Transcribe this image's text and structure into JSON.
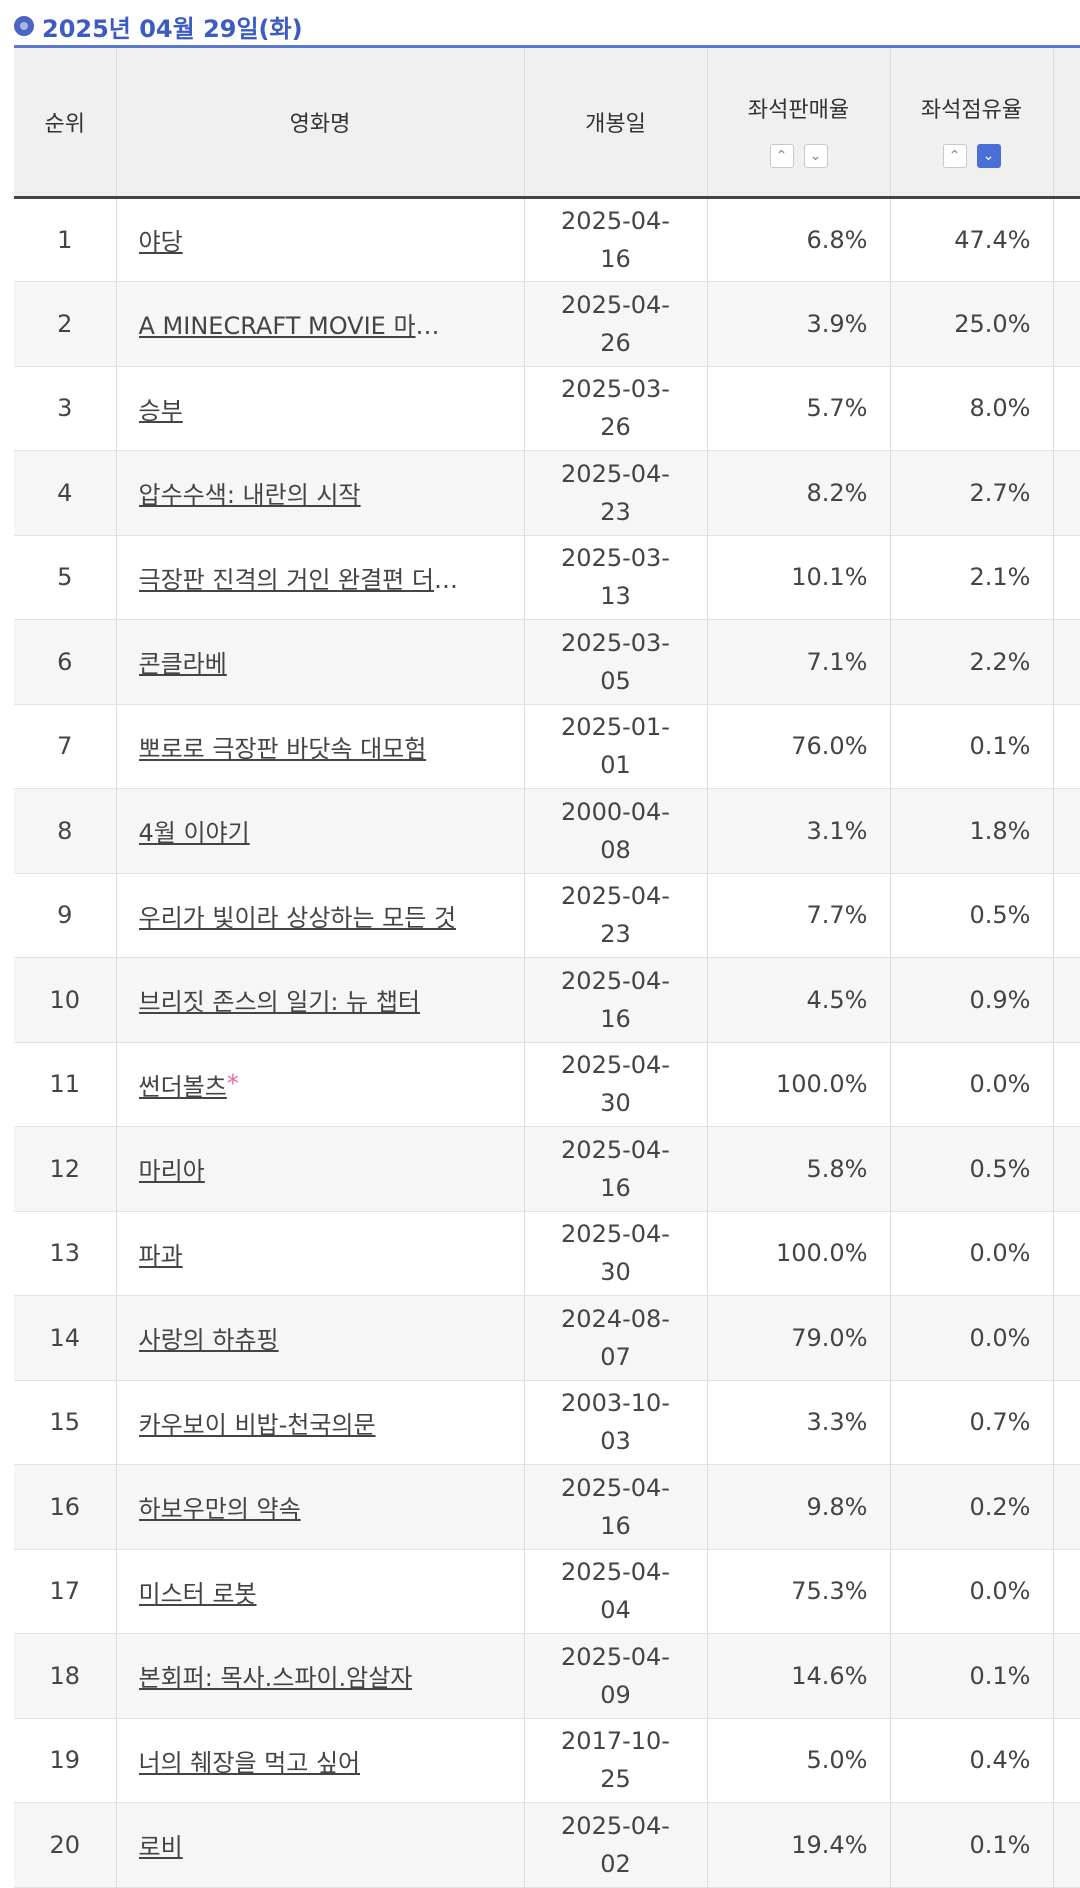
{
  "header": {
    "date": "2025년 04월 29일(화)"
  },
  "columns": {
    "rank": "순위",
    "title": "영화명",
    "open_date": "개봉일",
    "sales_rate": "좌석판매율",
    "share_rate": "좌석점유율"
  },
  "sort": {
    "up": "⌃",
    "down": "⌄",
    "active": "좌석점유율 내림차순"
  },
  "colors": {
    "accent": "#3d5bc4",
    "active_sort": "#4a6fd6",
    "star": "#e86aa8"
  },
  "rows": [
    {
      "rank": "1",
      "title": "야당",
      "open_date": "2025-04-16",
      "sales": "6.8%",
      "share": "47.4%"
    },
    {
      "rank": "2",
      "title": "A MINECRAFT MOVIE 마인크…",
      "open_date": "2025-04-26",
      "sales": "3.9%",
      "share": "25.0%"
    },
    {
      "rank": "3",
      "title": "승부",
      "open_date": "2025-03-26",
      "sales": "5.7%",
      "share": "8.0%"
    },
    {
      "rank": "4",
      "title": "압수수색: 내란의 시작",
      "open_date": "2025-04-23",
      "sales": "8.2%",
      "share": "2.7%"
    },
    {
      "rank": "5",
      "title": "극장판 진격의 거인 완결편 더 라스…",
      "open_date": "2025-03-13",
      "sales": "10.1%",
      "share": "2.1%"
    },
    {
      "rank": "6",
      "title": "콘클라베",
      "open_date": "2025-03-05",
      "sales": "7.1%",
      "share": "2.2%"
    },
    {
      "rank": "7",
      "title": "뽀로로 극장판 바닷속 대모험",
      "open_date": "2025-01-01",
      "sales": "76.0%",
      "share": "0.1%"
    },
    {
      "rank": "8",
      "title": "4월 이야기",
      "open_date": "2000-04-08",
      "sales": "3.1%",
      "share": "1.8%"
    },
    {
      "rank": "9",
      "title": "우리가 빛이라 상상하는 모든 것",
      "open_date": "2025-04-23",
      "sales": "7.7%",
      "share": "0.5%"
    },
    {
      "rank": "10",
      "title": "브리짓 존스의 일기: 뉴 챕터",
      "open_date": "2025-04-16",
      "sales": "4.5%",
      "share": "0.9%"
    },
    {
      "rank": "11",
      "title": "썬더볼츠",
      "star": "*",
      "open_date": "2025-04-30",
      "sales": "100.0%",
      "share": "0.0%"
    },
    {
      "rank": "12",
      "title": "마리아",
      "open_date": "2025-04-16",
      "sales": "5.8%",
      "share": "0.5%"
    },
    {
      "rank": "13",
      "title": "파과",
      "open_date": "2025-04-30",
      "sales": "100.0%",
      "share": "0.0%"
    },
    {
      "rank": "14",
      "title": "사랑의 하츄핑",
      "open_date": "2024-08-07",
      "sales": "79.0%",
      "share": "0.0%"
    },
    {
      "rank": "15",
      "title": "카우보이 비밥-천국의문",
      "open_date": "2003-10-03",
      "sales": "3.3%",
      "share": "0.7%"
    },
    {
      "rank": "16",
      "title": "하보우만의 약속",
      "open_date": "2025-04-16",
      "sales": "9.8%",
      "share": "0.2%"
    },
    {
      "rank": "17",
      "title": "미스터 로봇",
      "open_date": "2025-04-04",
      "sales": "75.3%",
      "share": "0.0%"
    },
    {
      "rank": "18",
      "title": "본회퍼: 목사.스파이.암살자",
      "open_date": "2025-04-09",
      "sales": "14.6%",
      "share": "0.1%"
    },
    {
      "rank": "19",
      "title": "너의 췌장을 먹고 싶어",
      "open_date": "2017-10-25",
      "sales": "5.0%",
      "share": "0.4%"
    },
    {
      "rank": "20",
      "title": "로비",
      "open_date": "2025-04-02",
      "sales": "19.4%",
      "share": "0.1%"
    }
  ]
}
